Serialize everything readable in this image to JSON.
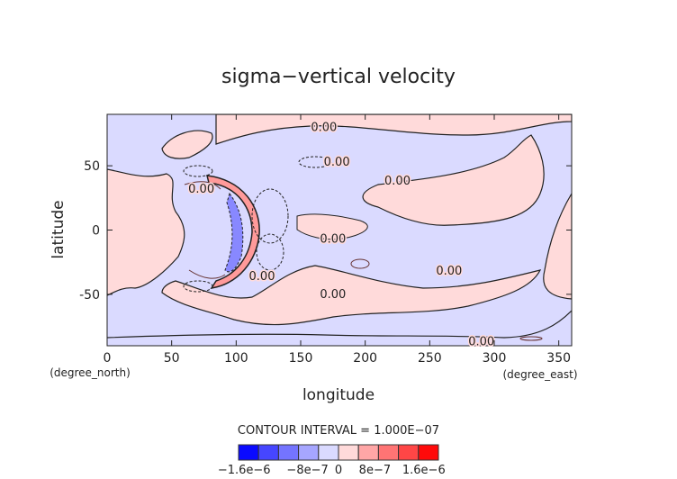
{
  "chart_data": {
    "type": "heatmap",
    "subtype": "filled-contour-map",
    "title": "sigma−vertical velocity",
    "xlabel": "longitude",
    "ylabel": "latitude",
    "x_units": "(degree_east)",
    "y_units": "(degree_north)",
    "xlim": [
      0,
      360
    ],
    "ylim": [
      -90,
      90
    ],
    "x_ticks": [
      0,
      50,
      100,
      150,
      200,
      250,
      300,
      350
    ],
    "y_ticks": [
      -50,
      0,
      50
    ],
    "contour_interval_text": "CONTOUR INTERVAL = 1.000E−07",
    "contour_labels": [
      "0.00"
    ],
    "colorbar": {
      "colors": [
        "#0a0aff",
        "#4646ff",
        "#7474ff",
        "#a6a6ff",
        "#dadaff",
        "#ffdada",
        "#ffa6a6",
        "#ff7474",
        "#ff4646",
        "#ff0a0a"
      ],
      "tick_labels": [
        "−1.6e−6",
        "−8e−7",
        "0",
        "8e−7",
        "1.6e−6"
      ],
      "tick_values": [
        -1.6e-06,
        -8e-07,
        0,
        8e-07,
        1.6e-06
      ]
    },
    "features": "Crescent-shaped strong up/down-motion arc centered near 110E, 0N; weak positive/negative regions elsewhere"
  }
}
